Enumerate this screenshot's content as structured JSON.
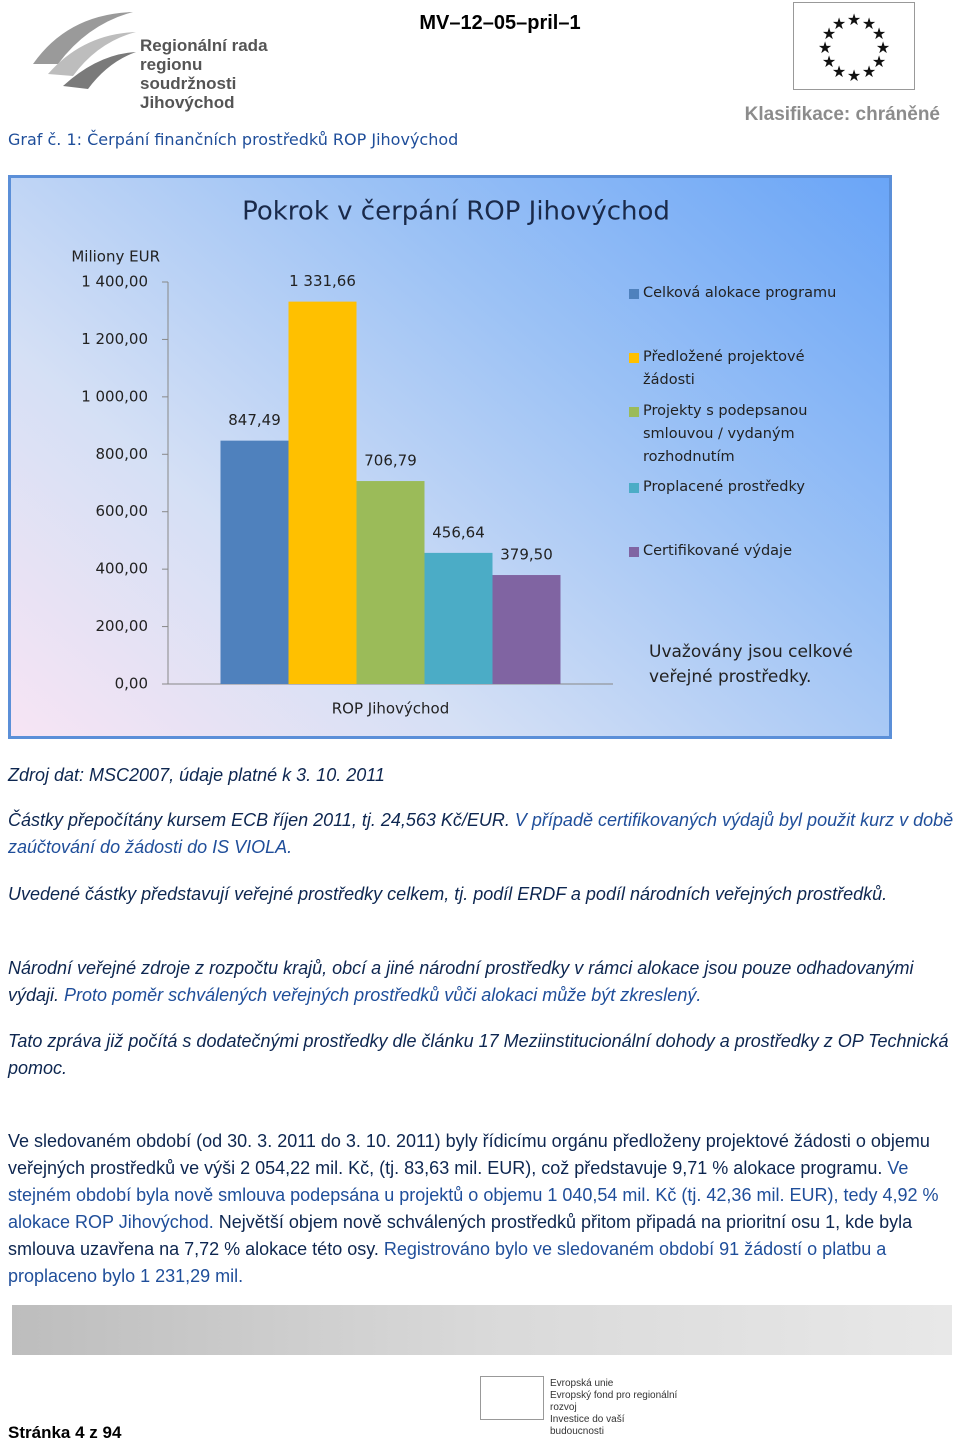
{
  "header": {
    "logo_lines": [
      "Regionální rada",
      "regionu soudržnosti",
      "Jihovýchod"
    ],
    "doc_id": "MV–12–05–pril–1",
    "classification": "Klasifikace: chráněné"
  },
  "caption": "Graf č. 1: Čerpání finančních prostředků ROP Jihovýchod",
  "chart_data": {
    "type": "bar",
    "title": "Pokrok v čerpání ROP Jihovýchod",
    "y_label": "Miliony EUR",
    "categories": [
      "ROP Jihovýchod"
    ],
    "series": [
      {
        "name": "Celková alokace programu",
        "color": "#4f81bd",
        "values": [
          847.49
        ],
        "value_labels": [
          "847,49"
        ]
      },
      {
        "name": "Předložené projektové žádosti",
        "color": "#ffc000",
        "values": [
          1331.66
        ],
        "value_labels": [
          "1 331,66"
        ]
      },
      {
        "name": "Projekty s podepsanou smlouvou / vydaným rozhodnutím",
        "color": "#9bbb59",
        "values": [
          706.79
        ],
        "value_labels": [
          "706,79"
        ]
      },
      {
        "name": "Proplacené prostředky",
        "color": "#4bacc6",
        "values": [
          456.64
        ],
        "value_labels": [
          "456,64"
        ]
      },
      {
        "name": "Certifikované výdaje",
        "color": "#8064a2",
        "values": [
          379.5
        ],
        "value_labels": [
          "379,50"
        ]
      }
    ],
    "ylim": [
      0,
      1400
    ],
    "yticks": [
      {
        "value": 0,
        "label": "0,00"
      },
      {
        "value": 200,
        "label": "200,00"
      },
      {
        "value": 400,
        "label": "400,00"
      },
      {
        "value": 600,
        "label": "600,00"
      },
      {
        "value": 800,
        "label": "800,00"
      },
      {
        "value": 1000,
        "label": "1 000,00"
      },
      {
        "value": 1200,
        "label": "1 200,00"
      },
      {
        "value": 1400,
        "label": "1 400,00"
      }
    ],
    "legend": "right",
    "annotation": "Uvažovány jsou celkové veřejné prostředky."
  },
  "source": "Zdroj dat: MSC2007, údaje platné k 3. 10. 2011",
  "notes": [
    [
      "Částky přepočítány kursem ECB říjen 2011, tj. 24,563 Kč/EUR.",
      "V případě certifikovaných výdajů byl použit kurz v době zaúčtování do žádosti do IS VIOLA."
    ],
    [
      "Uvedené částky představují veřejné prostředky celkem, tj. podíl ERDF a podíl národních veřejných prostředků."
    ],
    [
      "Národní veřejné zdroje z rozpočtu krajů, obcí a jiné národní prostředky v rámci alokace jsou pouze odhadovanými výdaji.",
      "Proto poměr schválených veřejných prostředků vůči alokaci může být zkreslený."
    ],
    [
      "Tato zpráva již počítá s dodatečnými prostředky dle článku 17 Meziinstitucionální dohody a prostředky z OP Technická pomoc."
    ]
  ],
  "paragraph": [
    "Ve sledovaném období (od 30. 3. 2011 do 3. 10. 2011) byly řídicímu orgánu předloženy projektové žádosti o objemu veřejných prostředků ve výši 2 054,22 mil. Kč, (tj. 83,63 mil. EUR), což představuje 9,71 % alokace programu.",
    "Ve stejném období byla nově smlouva podepsána u projektů o objemu 1 040,54 mil. Kč (tj. 42,36 mil. EUR), tedy 4,92 % alokace ROP Jihovýchod.",
    "Největší objem nově schválených prostředků přitom připadá na prioritní osu 1, kde byla smlouva uzavřena na 7,72 % alokace této osy.",
    "Registrováno bylo ve sledovaném období 91 žádostí o platbu a proplaceno bylo 1 231,29 mil."
  ],
  "footer": {
    "logo_lines": [
      "Evropská unie",
      "Evropský fond pro regionální rozvoj",
      "Investice do vaší budoucnosti"
    ],
    "page": "Stránka 4 z 94"
  }
}
